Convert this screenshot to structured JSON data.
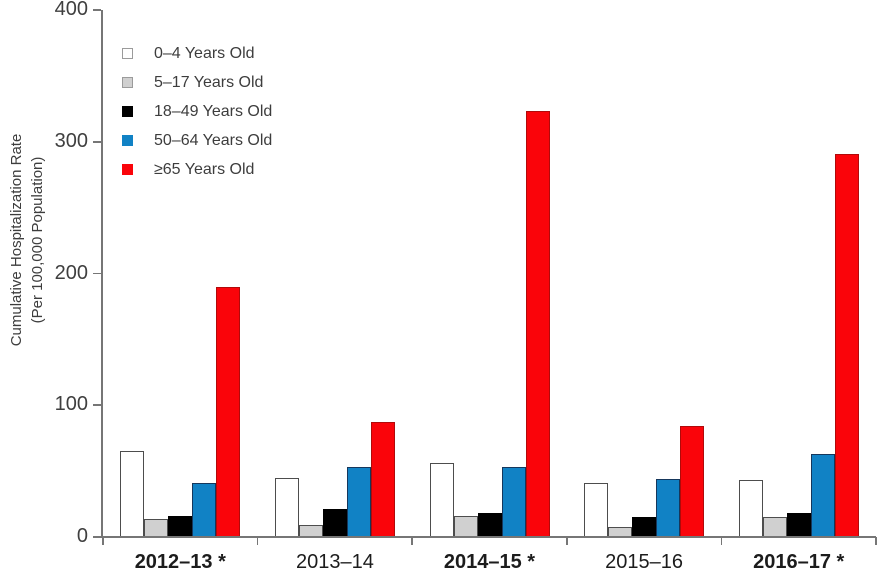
{
  "chart_data": {
    "type": "bar",
    "title": "",
    "ylabel": [
      "Cumulative Hospitalization Rate",
      "(Per 100,000 Population)"
    ],
    "xlabel": "",
    "categories": [
      "2012–13 *",
      "2013–14",
      "2014–15 *",
      "2015–16",
      "2016–17 *"
    ],
    "categories_bold": [
      true,
      false,
      true,
      false,
      true
    ],
    "yticks": [
      0,
      100,
      200,
      300,
      400
    ],
    "ylim": [
      0,
      400
    ],
    "grid": false,
    "legend_position": "inside-upper-left",
    "axis_color": "#767676",
    "series": [
      {
        "name": "0–4 Years Old",
        "fill": "#ffffff",
        "border": "#4d4d4d",
        "marker_border": "#9b9b9b",
        "values": [
          65,
          45,
          56,
          41,
          43
        ]
      },
      {
        "name": "5–17 Years Old",
        "fill": "#d0d0d0",
        "border": "#4d4d4d",
        "marker_border": "#9b9b9b",
        "values": [
          14,
          9,
          16,
          8,
          15
        ]
      },
      {
        "name": "18–49 Years Old",
        "fill": "#000000",
        "border": "#000000",
        "marker_border": "#000000",
        "values": [
          16,
          21,
          18,
          15,
          18
        ]
      },
      {
        "name": "50–64 Years Old",
        "fill": "#1182c5",
        "border": "#16375c",
        "marker_border": "#1182c5",
        "values": [
          41,
          53,
          53,
          44,
          63
        ]
      },
      {
        "name": "≥65 Years Old",
        "fill": "#fa040a",
        "border": "#b10a0a",
        "marker_border": "#fa040a",
        "values": [
          190,
          87,
          323,
          84,
          291
        ]
      }
    ]
  }
}
